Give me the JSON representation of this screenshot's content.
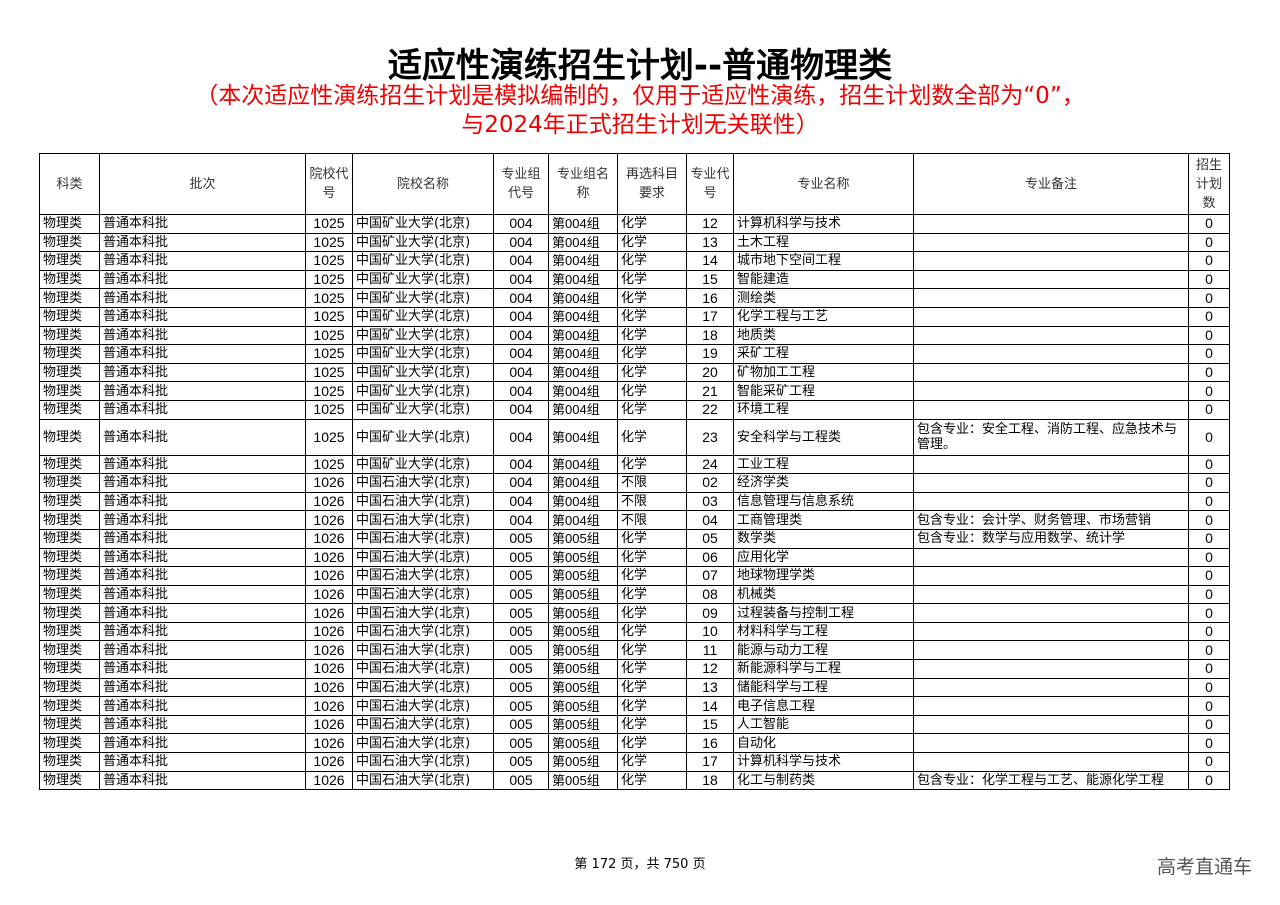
{
  "title": "适应性演练招生计划--普通物理类",
  "notice_line1": "（本次适应性演练招生计划是模拟编制的，仅用于适应性演练，招生计划数全部为“0”，",
  "notice_line2": "与2024年正式招生计划无关联性）",
  "headers": [
    "科类",
    "批次",
    "院校代号",
    "院校名称",
    "专业组代号",
    "专业组名称",
    "再选科目要求",
    "专业代号",
    "专业名称",
    "专业备注",
    "招生计划数"
  ],
  "rows": [
    [
      "物理类",
      "普通本科批",
      "1025",
      "中国矿业大学(北京)",
      "004",
      "第004组",
      "化学",
      "12",
      "计算机科学与技术",
      "",
      "0"
    ],
    [
      "物理类",
      "普通本科批",
      "1025",
      "中国矿业大学(北京)",
      "004",
      "第004组",
      "化学",
      "13",
      "土木工程",
      "",
      "0"
    ],
    [
      "物理类",
      "普通本科批",
      "1025",
      "中国矿业大学(北京)",
      "004",
      "第004组",
      "化学",
      "14",
      "城市地下空间工程",
      "",
      "0"
    ],
    [
      "物理类",
      "普通本科批",
      "1025",
      "中国矿业大学(北京)",
      "004",
      "第004组",
      "化学",
      "15",
      "智能建造",
      "",
      "0"
    ],
    [
      "物理类",
      "普通本科批",
      "1025",
      "中国矿业大学(北京)",
      "004",
      "第004组",
      "化学",
      "16",
      "测绘类",
      "",
      "0"
    ],
    [
      "物理类",
      "普通本科批",
      "1025",
      "中国矿业大学(北京)",
      "004",
      "第004组",
      "化学",
      "17",
      "化学工程与工艺",
      "",
      "0"
    ],
    [
      "物理类",
      "普通本科批",
      "1025",
      "中国矿业大学(北京)",
      "004",
      "第004组",
      "化学",
      "18",
      "地质类",
      "",
      "0"
    ],
    [
      "物理类",
      "普通本科批",
      "1025",
      "中国矿业大学(北京)",
      "004",
      "第004组",
      "化学",
      "19",
      "采矿工程",
      "",
      "0"
    ],
    [
      "物理类",
      "普通本科批",
      "1025",
      "中国矿业大学(北京)",
      "004",
      "第004组",
      "化学",
      "20",
      "矿物加工工程",
      "",
      "0"
    ],
    [
      "物理类",
      "普通本科批",
      "1025",
      "中国矿业大学(北京)",
      "004",
      "第004组",
      "化学",
      "21",
      "智能采矿工程",
      "",
      "0"
    ],
    [
      "物理类",
      "普通本科批",
      "1025",
      "中国矿业大学(北京)",
      "004",
      "第004组",
      "化学",
      "22",
      "环境工程",
      "",
      "0"
    ],
    [
      "物理类",
      "普通本科批",
      "1025",
      "中国矿业大学(北京)",
      "004",
      "第004组",
      "化学",
      "23",
      "安全科学与工程类",
      "包含专业：安全工程、消防工程、应急技术与管理。",
      "0"
    ],
    [
      "物理类",
      "普通本科批",
      "1025",
      "中国矿业大学(北京)",
      "004",
      "第004组",
      "化学",
      "24",
      "工业工程",
      "",
      "0"
    ],
    [
      "物理类",
      "普通本科批",
      "1026",
      "中国石油大学(北京)",
      "004",
      "第004组",
      "不限",
      "02",
      "经济学类",
      "",
      "0"
    ],
    [
      "物理类",
      "普通本科批",
      "1026",
      "中国石油大学(北京)",
      "004",
      "第004组",
      "不限",
      "03",
      "信息管理与信息系统",
      "",
      "0"
    ],
    [
      "物理类",
      "普通本科批",
      "1026",
      "中国石油大学(北京)",
      "004",
      "第004组",
      "不限",
      "04",
      "工商管理类",
      "包含专业：会计学、财务管理、市场营销",
      "0"
    ],
    [
      "物理类",
      "普通本科批",
      "1026",
      "中国石油大学(北京)",
      "005",
      "第005组",
      "化学",
      "05",
      "数学类",
      "包含专业：数学与应用数学、统计学",
      "0"
    ],
    [
      "物理类",
      "普通本科批",
      "1026",
      "中国石油大学(北京)",
      "005",
      "第005组",
      "化学",
      "06",
      "应用化学",
      "",
      "0"
    ],
    [
      "物理类",
      "普通本科批",
      "1026",
      "中国石油大学(北京)",
      "005",
      "第005组",
      "化学",
      "07",
      "地球物理学类",
      "",
      "0"
    ],
    [
      "物理类",
      "普通本科批",
      "1026",
      "中国石油大学(北京)",
      "005",
      "第005组",
      "化学",
      "08",
      "机械类",
      "",
      "0"
    ],
    [
      "物理类",
      "普通本科批",
      "1026",
      "中国石油大学(北京)",
      "005",
      "第005组",
      "化学",
      "09",
      "过程装备与控制工程",
      "",
      "0"
    ],
    [
      "物理类",
      "普通本科批",
      "1026",
      "中国石油大学(北京)",
      "005",
      "第005组",
      "化学",
      "10",
      "材料科学与工程",
      "",
      "0"
    ],
    [
      "物理类",
      "普通本科批",
      "1026",
      "中国石油大学(北京)",
      "005",
      "第005组",
      "化学",
      "11",
      "能源与动力工程",
      "",
      "0"
    ],
    [
      "物理类",
      "普通本科批",
      "1026",
      "中国石油大学(北京)",
      "005",
      "第005组",
      "化学",
      "12",
      "新能源科学与工程",
      "",
      "0"
    ],
    [
      "物理类",
      "普通本科批",
      "1026",
      "中国石油大学(北京)",
      "005",
      "第005组",
      "化学",
      "13",
      "储能科学与工程",
      "",
      "0"
    ],
    [
      "物理类",
      "普通本科批",
      "1026",
      "中国石油大学(北京)",
      "005",
      "第005组",
      "化学",
      "14",
      "电子信息工程",
      "",
      "0"
    ],
    [
      "物理类",
      "普通本科批",
      "1026",
      "中国石油大学(北京)",
      "005",
      "第005组",
      "化学",
      "15",
      "人工智能",
      "",
      "0"
    ],
    [
      "物理类",
      "普通本科批",
      "1026",
      "中国石油大学(北京)",
      "005",
      "第005组",
      "化学",
      "16",
      "自动化",
      "",
      "0"
    ],
    [
      "物理类",
      "普通本科批",
      "1026",
      "中国石油大学(北京)",
      "005",
      "第005组",
      "化学",
      "17",
      "计算机科学与技术",
      "",
      "0"
    ],
    [
      "物理类",
      "普通本科批",
      "1026",
      "中国石油大学(北京)",
      "005",
      "第005组",
      "化学",
      "18",
      "化工与制药类",
      "包含专业：化学工程与工艺、能源化学工程",
      "0"
    ]
  ],
  "footer": "第 172 页，共 750 页",
  "brand": "高考直通车",
  "colors": {
    "notice": "#ee0000"
  }
}
